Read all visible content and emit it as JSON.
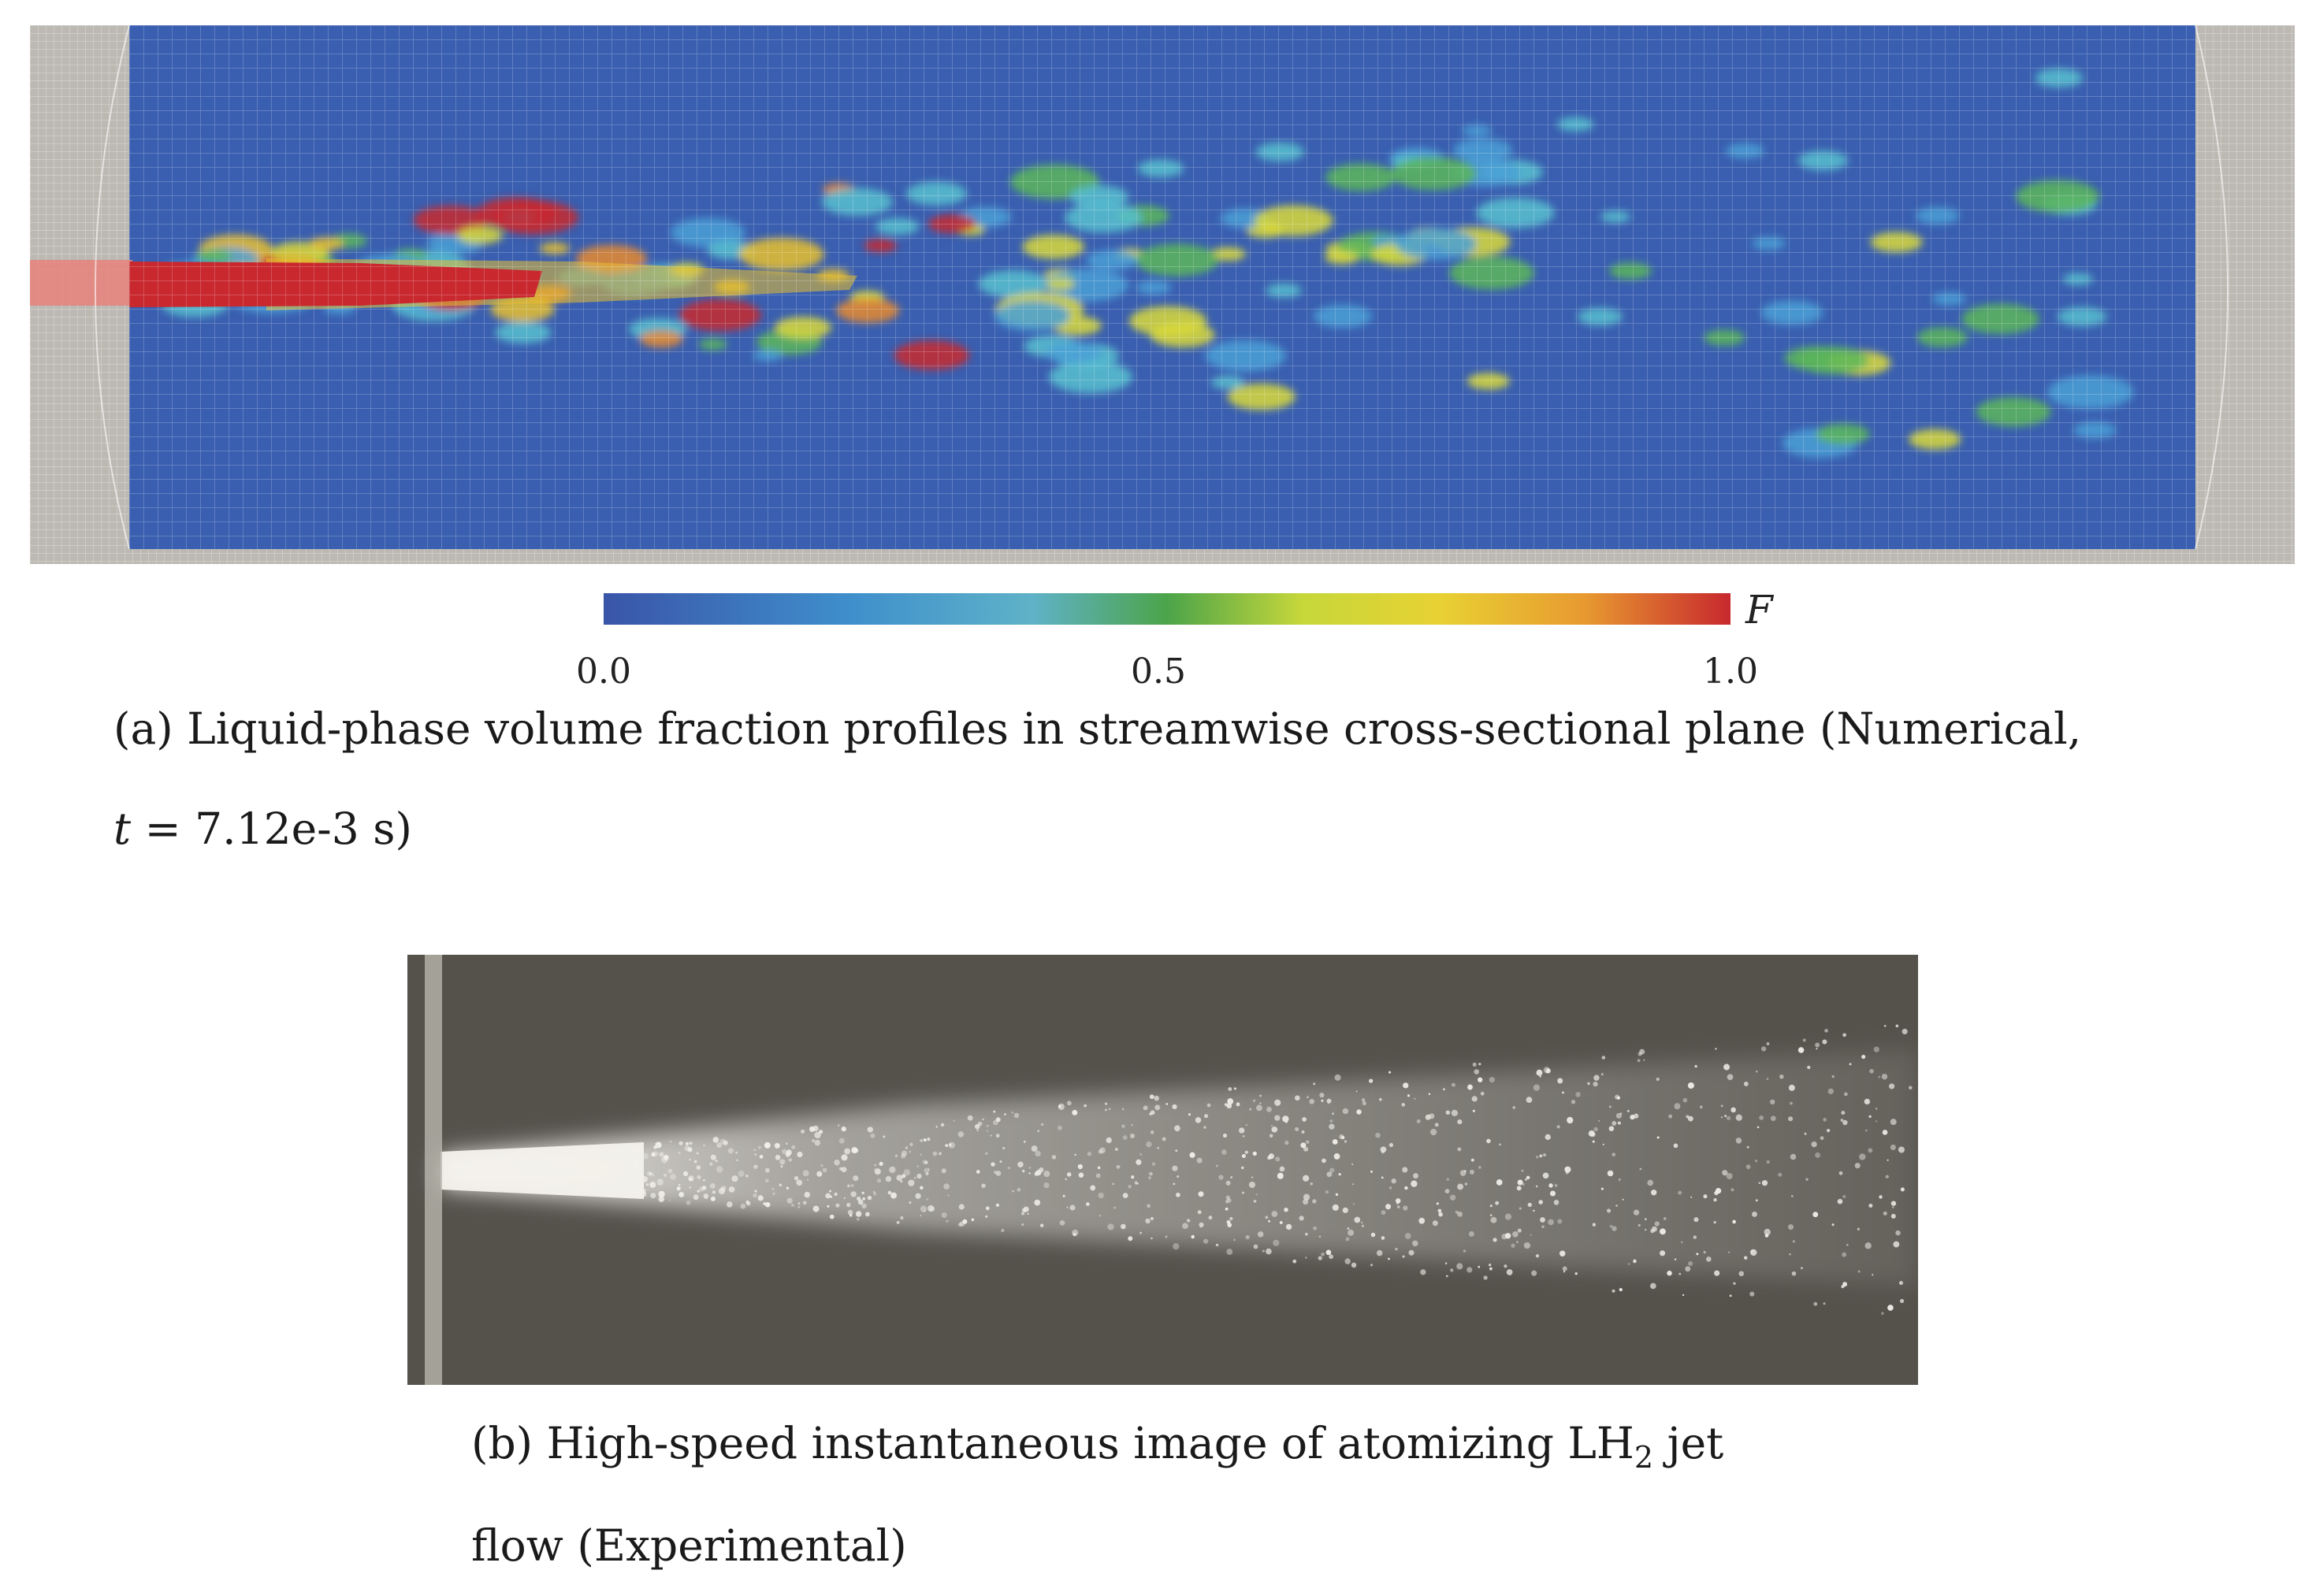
{
  "figure_a": {
    "caption_line1": "(a) Liquid-phase volume fraction profiles in streamwise cross-sectional plane (Numerical,",
    "caption_var": "t",
    "caption_rest": " = 7.12e-3 s)"
  },
  "colorbar": {
    "label": "F",
    "ticks": [
      "0.0",
      "0.5",
      "1.0"
    ],
    "colors": [
      "#3a55a8",
      "#3f8fcc",
      "#5fb2c8",
      "#4ca44a",
      "#c6d73a",
      "#e8d233",
      "#e89a30",
      "#c8282e"
    ]
  },
  "figure_b": {
    "caption_prefix": "(b) High-speed instantaneous image of atomizing LH",
    "caption_subscript": "2",
    "caption_suffix": " jet",
    "caption_line2": "flow (Experimental)"
  },
  "colors": {
    "field_blue": "#3a5fb0",
    "mesh_grey": "#bcb8b2",
    "photo_background": "#55524c",
    "spray_white": "#f2f0ea",
    "liquid_red": "#c8282e"
  }
}
